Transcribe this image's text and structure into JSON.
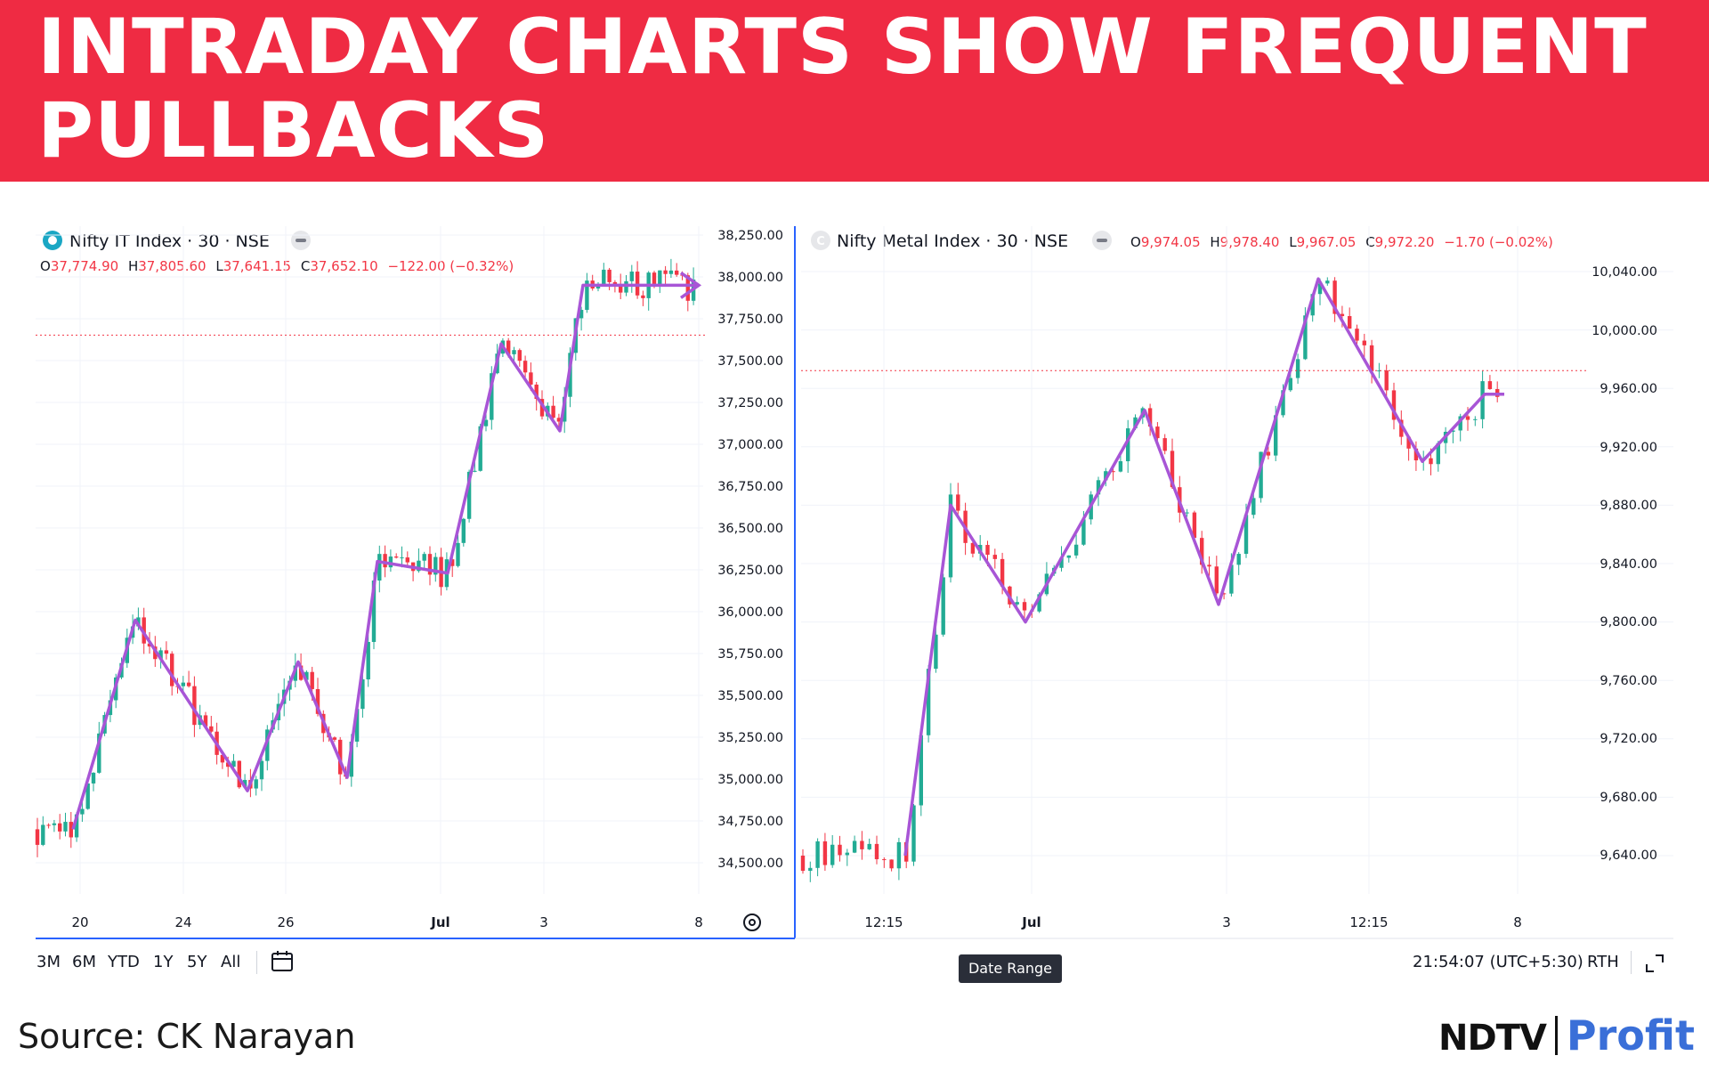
{
  "banner": {
    "title": "INTRADAY CHARTS SHOW FREQUENT PULLBACKS",
    "bg": "#ef2b43"
  },
  "charts": [
    {
      "title": "Nifty IT Index · 30 · NSE",
      "ohlc": {
        "o": "37,774.90",
        "h": "37,805.60",
        "l": "37,641.15",
        "c": "37,652.10",
        "chg": "−122.00 (−0.32%)"
      },
      "y_labels": [
        "38,250.00",
        "38,000.00",
        "37,750.00",
        "37,500.00",
        "37,250.00",
        "37,000.00",
        "36,750.00",
        "36,500.00",
        "36,250.00",
        "36,000.00",
        "35,750.00",
        "35,500.00",
        "35,250.00",
        "35,000.00",
        "34,750.00",
        "34,500.00"
      ],
      "x_labels": [
        "20",
        "24",
        "26",
        "Jul",
        "3",
        "8"
      ]
    },
    {
      "title": "Nifty Metal Index · 30 · NSE",
      "ohlc": {
        "o": "9,974.05",
        "h": "9,978.40",
        "l": "9,967.05",
        "c": "9,972.20",
        "chg": "−1.70 (−0.02%)"
      },
      "y_labels": [
        "10,040.00",
        "10,000.00",
        "9,960.00",
        "9,920.00",
        "9,880.00",
        "9,840.00",
        "9,800.00",
        "9,760.00",
        "9,720.00",
        "9,680.00",
        "9,640.00"
      ],
      "x_labels": [
        "12:15",
        "Jul",
        "3",
        "12:15",
        "8"
      ]
    }
  ],
  "chart_data": [
    {
      "type": "line",
      "title": "Nifty IT Index · 30 · NSE",
      "x": [
        "20",
        "24",
        "26",
        "Jul",
        "3",
        "8"
      ],
      "ylim": [
        34400,
        38300
      ],
      "series": [],
      "swing_pivots": [
        34700,
        35950,
        34930,
        35700,
        35010,
        36300,
        36230,
        37600,
        37080,
        37950,
        37950
      ],
      "last_close": 37652.1,
      "colors": {
        "up": "#22ab94",
        "down": "#f23645",
        "annotation": "#a855d6"
      }
    },
    {
      "type": "line",
      "title": "Nifty Metal Index · 30 · NSE",
      "x": [
        "12:15",
        "Jul",
        "3",
        "12:15",
        "8"
      ],
      "ylim": [
        9620,
        10060
      ],
      "series": [],
      "swing_pivots": [
        9640,
        9880,
        9800,
        9945,
        9812,
        10035,
        9910,
        9956,
        9956
      ],
      "last_close": 9972.2,
      "colors": {
        "up": "#22ab94",
        "down": "#f23645",
        "annotation": "#a855d6"
      }
    }
  ],
  "toolbar": {
    "ranges": [
      "3M",
      "6M",
      "YTD",
      "1Y",
      "5Y",
      "All"
    ],
    "date_range": "Date Range",
    "time": "21:54:07 (UTC+5:30)",
    "rth": "RTH"
  },
  "footer": {
    "source": "Source: CK Narayan",
    "brand_a": "NDTV",
    "brand_b": "Profit"
  }
}
